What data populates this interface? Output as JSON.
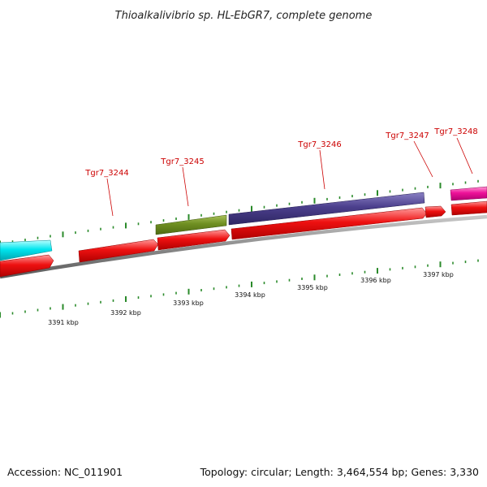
{
  "title": "Thioalkalivibrio sp. HL-EbGR7, complete genome",
  "footer": {
    "accession": "Accession: NC_011901",
    "topology": "Topology: circular; Length: 3,464,554 bp; Genes: 3,330"
  },
  "colors": {
    "backbone": "#8c8c8c",
    "tick": "#2a8a2a",
    "label_text": "#cc0000",
    "cyan_gene": "#00e5ee",
    "red_gene": "#ee1111",
    "olive_gene": "#6f8f22",
    "purple_gene": "#4b3f8c",
    "magenta_gene": "#ee1199"
  },
  "gene_labels": [
    "Tgr7_3244",
    "Tgr7_3245",
    "Tgr7_3246",
    "Tgr7_3247",
    "Tgr7_3248"
  ],
  "kbp_labels": [
    "3391 kbp",
    "3392 kbp",
    "3393 kbp",
    "3394 kbp",
    "3395 kbp",
    "3396 kbp",
    "3397 kbp"
  ]
}
